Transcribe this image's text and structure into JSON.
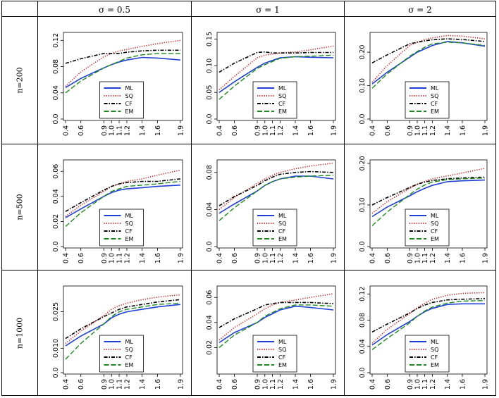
{
  "table": {
    "column_headers": [
      "σ = 0.5",
      "σ = 1",
      "σ = 2"
    ],
    "row_headers": [
      "n=200",
      "n=500",
      "n=1000"
    ]
  },
  "colors": {
    "ML": "#1f3fd6",
    "SQ": "#d21f1f",
    "CF": "#000000",
    "EM": "#1e8a1e"
  },
  "chart_data": [
    {
      "type": "line",
      "row": "n=200",
      "column": "σ = 0.5",
      "x": [
        0.4,
        0.6,
        0.9,
        1.0,
        1.1,
        1.2,
        1.4,
        1.6,
        1.9
      ],
      "x_ticks": [
        "0.4",
        "0.6",
        "0.9",
        "1.0",
        "1.1",
        "1.2",
        "1.4",
        "1.6",
        "1.9"
      ],
      "ylim": [
        0.0,
        0.13
      ],
      "y_ticks": [
        "0.0",
        "0.04",
        "0.08",
        "0.12"
      ],
      "legend": "bottom-center",
      "series": [
        {
          "name": "ML",
          "values": [
            0.048,
            0.062,
            0.078,
            0.083,
            0.087,
            0.09,
            0.094,
            0.093,
            0.09
          ]
        },
        {
          "name": "SQ",
          "values": [
            0.05,
            0.072,
            0.095,
            0.1,
            0.104,
            0.106,
            0.111,
            0.115,
            0.12
          ]
        },
        {
          "name": "CF",
          "values": [
            0.085,
            0.092,
            0.1,
            0.1,
            0.1,
            0.102,
            0.104,
            0.105,
            0.105
          ]
        },
        {
          "name": "EM",
          "values": [
            0.04,
            0.058,
            0.078,
            0.083,
            0.088,
            0.093,
            0.098,
            0.1,
            0.1
          ]
        }
      ]
    },
    {
      "type": "line",
      "row": "n=200",
      "column": "σ = 1",
      "x": [
        0.4,
        0.6,
        0.9,
        1.0,
        1.1,
        1.2,
        1.4,
        1.6,
        1.9
      ],
      "x_ticks": [
        "0.4",
        "0.6",
        "0.9",
        "1.0",
        "1.1",
        "1.2",
        "1.4",
        "1.6",
        "1.9"
      ],
      "ylim": [
        0.0,
        0.16
      ],
      "y_ticks": [
        "0.0",
        "0.05",
        "0.10",
        "0.15"
      ],
      "legend": "bottom-center",
      "series": [
        {
          "name": "ML",
          "values": [
            0.05,
            0.07,
            0.097,
            0.105,
            0.11,
            0.115,
            0.117,
            0.116,
            0.115
          ]
        },
        {
          "name": "SQ",
          "values": [
            0.055,
            0.08,
            0.115,
            0.12,
            0.122,
            0.124,
            0.126,
            0.13,
            0.137
          ]
        },
        {
          "name": "CF",
          "values": [
            0.088,
            0.105,
            0.125,
            0.126,
            0.124,
            0.124,
            0.124,
            0.125,
            0.125
          ]
        },
        {
          "name": "EM",
          "values": [
            0.037,
            0.062,
            0.095,
            0.102,
            0.108,
            0.114,
            0.117,
            0.118,
            0.12
          ]
        }
      ]
    },
    {
      "type": "line",
      "row": "n=200",
      "column": "σ = 2",
      "x": [
        0.4,
        0.6,
        0.9,
        1.0,
        1.1,
        1.2,
        1.4,
        1.6,
        1.9
      ],
      "x_ticks": [
        "0.4",
        "0.6",
        "0.9",
        "1.0",
        "1.1",
        "1.2",
        "1.4",
        "1.6",
        "1.9"
      ],
      "ylim": [
        0.0,
        0.255
      ],
      "y_ticks": [
        "0.0",
        "0.10",
        "0.20"
      ],
      "legend": "bottom-center",
      "series": [
        {
          "name": "ML",
          "values": [
            0.105,
            0.14,
            0.185,
            0.2,
            0.21,
            0.22,
            0.232,
            0.228,
            0.218
          ]
        },
        {
          "name": "SQ",
          "values": [
            0.11,
            0.16,
            0.22,
            0.23,
            0.238,
            0.243,
            0.25,
            0.248,
            0.24
          ]
        },
        {
          "name": "CF",
          "values": [
            0.168,
            0.192,
            0.225,
            0.23,
            0.234,
            0.237,
            0.24,
            0.238,
            0.232
          ]
        },
        {
          "name": "EM",
          "values": [
            0.092,
            0.135,
            0.188,
            0.202,
            0.215,
            0.225,
            0.23,
            0.228,
            0.22
          ]
        }
      ]
    },
    {
      "type": "line",
      "row": "n=500",
      "column": "σ = 0.5",
      "x": [
        0.4,
        0.6,
        0.9,
        1.0,
        1.1,
        1.2,
        1.4,
        1.6,
        1.9
      ],
      "x_ticks": [
        "0.4",
        "0.6",
        "0.9",
        "1.0",
        "1.1",
        "1.2",
        "1.4",
        "1.6",
        "1.9"
      ],
      "ylim": [
        0.0,
        0.068
      ],
      "y_ticks": [
        "0.0",
        "0.02",
        "0.04",
        "0.06"
      ],
      "legend": "bottom-center",
      "series": [
        {
          "name": "ML",
          "values": [
            0.023,
            0.03,
            0.04,
            0.043,
            0.045,
            0.046,
            0.047,
            0.048,
            0.049
          ]
        },
        {
          "name": "SQ",
          "values": [
            0.024,
            0.033,
            0.044,
            0.048,
            0.05,
            0.052,
            0.054,
            0.057,
            0.061
          ]
        },
        {
          "name": "CF",
          "values": [
            0.028,
            0.035,
            0.045,
            0.048,
            0.05,
            0.051,
            0.052,
            0.052,
            0.054
          ]
        },
        {
          "name": "EM",
          "values": [
            0.016,
            0.027,
            0.04,
            0.044,
            0.046,
            0.048,
            0.049,
            0.05,
            0.052
          ]
        }
      ]
    },
    {
      "type": "line",
      "row": "n=500",
      "column": "σ = 1",
      "x": [
        0.4,
        0.6,
        0.9,
        1.0,
        1.1,
        1.2,
        1.4,
        1.6,
        1.9
      ],
      "x_ticks": [
        "0.4",
        "0.6",
        "0.9",
        "1.0",
        "1.1",
        "1.2",
        "1.4",
        "1.6",
        "1.9"
      ],
      "ylim": [
        0.0,
        0.092
      ],
      "y_ticks": [
        "0.0",
        "0.04",
        "0.08"
      ],
      "legend": "bottom-center",
      "series": [
        {
          "name": "ML",
          "values": [
            0.036,
            0.046,
            0.06,
            0.066,
            0.07,
            0.073,
            0.076,
            0.076,
            0.073
          ]
        },
        {
          "name": "SQ",
          "values": [
            0.04,
            0.053,
            0.068,
            0.073,
            0.077,
            0.08,
            0.084,
            0.087,
            0.09
          ]
        },
        {
          "name": "CF",
          "values": [
            0.044,
            0.054,
            0.066,
            0.071,
            0.075,
            0.078,
            0.08,
            0.081,
            0.08
          ]
        },
        {
          "name": "EM",
          "values": [
            0.028,
            0.042,
            0.06,
            0.066,
            0.07,
            0.073,
            0.075,
            0.076,
            0.077
          ]
        }
      ]
    },
    {
      "type": "line",
      "row": "n=500",
      "column": "σ = 2",
      "x": [
        0.4,
        0.6,
        0.9,
        1.0,
        1.1,
        1.2,
        1.4,
        1.6,
        1.9
      ],
      "x_ticks": [
        "0.4",
        "0.6",
        "0.9",
        "1.0",
        "1.1",
        "1.2",
        "1.4",
        "1.6",
        "1.9"
      ],
      "ylim": [
        0.0,
        0.205
      ],
      "y_ticks": [
        "0.0",
        "0.10",
        "0.20"
      ],
      "legend": "bottom-center",
      "series": [
        {
          "name": "ML",
          "values": [
            0.072,
            0.095,
            0.122,
            0.132,
            0.14,
            0.147,
            0.156,
            0.158,
            0.16
          ]
        },
        {
          "name": "SQ",
          "values": [
            0.08,
            0.108,
            0.14,
            0.15,
            0.157,
            0.163,
            0.17,
            0.177,
            0.188
          ]
        },
        {
          "name": "CF",
          "values": [
            0.1,
            0.118,
            0.142,
            0.15,
            0.155,
            0.159,
            0.163,
            0.165,
            0.167
          ]
        },
        {
          "name": "EM",
          "values": [
            0.05,
            0.083,
            0.125,
            0.138,
            0.148,
            0.155,
            0.161,
            0.163,
            0.165
          ]
        }
      ]
    },
    {
      "type": "line",
      "row": "n=1000",
      "column": "σ = 0.5",
      "x": [
        0.4,
        0.6,
        0.9,
        1.0,
        1.1,
        1.2,
        1.4,
        1.6,
        1.9
      ],
      "x_ticks": [
        "0.4",
        "0.6",
        "0.9",
        "1.0",
        "1.1",
        "1.2",
        "1.4",
        "1.6",
        "1.9"
      ],
      "ylim": [
        0.0,
        0.035
      ],
      "y_ticks": [
        "0.0",
        "0.010",
        "0.025"
      ],
      "legend": "bottom-center",
      "series": [
        {
          "name": "ML",
          "values": [
            0.011,
            0.015,
            0.02,
            0.0225,
            0.024,
            0.025,
            0.026,
            0.027,
            0.028
          ]
        },
        {
          "name": "SQ",
          "values": [
            0.012,
            0.017,
            0.0235,
            0.026,
            0.0275,
            0.0285,
            0.03,
            0.031,
            0.032
          ]
        },
        {
          "name": "CF",
          "values": [
            0.014,
            0.018,
            0.023,
            0.0245,
            0.026,
            0.027,
            0.028,
            0.029,
            0.03
          ]
        },
        {
          "name": "EM",
          "values": [
            0.0055,
            0.012,
            0.02,
            0.023,
            0.025,
            0.026,
            0.027,
            0.028,
            0.0285
          ]
        }
      ]
    },
    {
      "type": "line",
      "row": "n=1000",
      "column": "σ = 1",
      "x": [
        0.4,
        0.6,
        0.9,
        1.0,
        1.1,
        1.2,
        1.4,
        1.6,
        1.9
      ],
      "x_ticks": [
        "0.4",
        "0.6",
        "0.9",
        "1.0",
        "1.1",
        "1.2",
        "1.4",
        "1.6",
        "1.9"
      ],
      "ylim": [
        0.0,
        0.068
      ],
      "y_ticks": [
        "0.02",
        "0.04",
        "0.06"
      ],
      "legend": "bottom-center",
      "series": [
        {
          "name": "ML",
          "values": [
            0.024,
            0.032,
            0.04,
            0.044,
            0.047,
            0.05,
            0.053,
            0.052,
            0.05
          ]
        },
        {
          "name": "SQ",
          "values": [
            0.026,
            0.036,
            0.047,
            0.051,
            0.054,
            0.056,
            0.058,
            0.06,
            0.063
          ]
        },
        {
          "name": "CF",
          "values": [
            0.036,
            0.043,
            0.051,
            0.054,
            0.055,
            0.056,
            0.056,
            0.056,
            0.055
          ]
        },
        {
          "name": "EM",
          "values": [
            0.02,
            0.03,
            0.04,
            0.045,
            0.048,
            0.051,
            0.054,
            0.054,
            0.053
          ]
        }
      ]
    },
    {
      "type": "line",
      "row": "n=1000",
      "column": "σ = 2",
      "x": [
        0.4,
        0.6,
        0.9,
        1.0,
        1.1,
        1.2,
        1.4,
        1.6,
        1.9
      ],
      "x_ticks": [
        "0.4",
        "0.6",
        "0.9",
        "1.0",
        "1.1",
        "1.2",
        "1.4",
        "1.6",
        "1.9"
      ],
      "ylim": [
        0.0,
        0.13
      ],
      "y_ticks": [
        "0.0",
        "0.04",
        "0.08",
        "0.12"
      ],
      "legend": "bottom-center",
      "series": [
        {
          "name": "ML",
          "values": [
            0.042,
            0.058,
            0.078,
            0.086,
            0.093,
            0.098,
            0.104,
            0.105,
            0.105
          ]
        },
        {
          "name": "SQ",
          "values": [
            0.045,
            0.066,
            0.09,
            0.099,
            0.106,
            0.112,
            0.118,
            0.121,
            0.122
          ]
        },
        {
          "name": "CF",
          "values": [
            0.062,
            0.074,
            0.091,
            0.098,
            0.103,
            0.107,
            0.111,
            0.112,
            0.113
          ]
        },
        {
          "name": "EM",
          "values": [
            0.035,
            0.052,
            0.076,
            0.086,
            0.094,
            0.1,
            0.106,
            0.109,
            0.11
          ]
        }
      ]
    }
  ]
}
